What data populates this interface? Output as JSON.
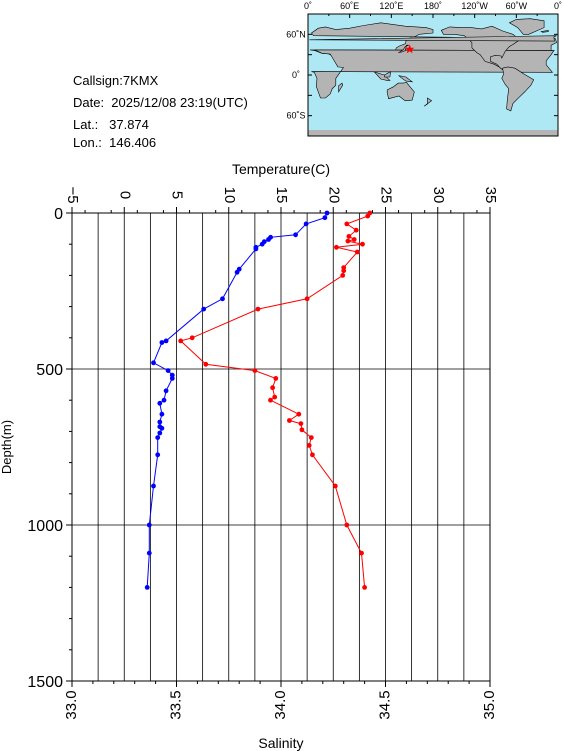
{
  "info": {
    "callsign": "Callsign:7KMX",
    "date": "Date:  2025/12/08 23:19(UTC)",
    "lat": "Lat.:   37.874",
    "lon": "Lon.:  146.406"
  },
  "map": {
    "lon_labels": [
      "0˚",
      "60˚E",
      "120˚E",
      "180˚",
      "120˚W",
      "60˚W",
      "0˚"
    ],
    "lat_labels": [
      "60˚N",
      "0˚",
      "60˚S"
    ],
    "station_lon": 146.406,
    "station_lat": 37.874,
    "ocean_color": "#aee8f5",
    "land_color": "#b4b4b4",
    "marker_color": "#ff0000"
  },
  "chart_data": {
    "type": "scatter",
    "title": "",
    "ylabel": "Depth(m)",
    "ylim": [
      0,
      1500
    ],
    "y_inverted": true,
    "y_ticks": [
      "0",
      "500",
      "1000",
      "1500"
    ],
    "top_axis": {
      "label": "Temperature(C)",
      "range": [
        -5,
        35
      ],
      "ticks": [
        "−5",
        "0",
        "5",
        "10",
        "15",
        "20",
        "25",
        "30",
        "35"
      ]
    },
    "bottom_axis": {
      "label": "Salinity",
      "range": [
        33.0,
        35.0
      ],
      "ticks": [
        "33.0",
        "33.5",
        "34.0",
        "34.5",
        "35.0"
      ]
    },
    "grid": true,
    "series": [
      {
        "axis": "temperature",
        "color": "#ff0000",
        "points": [
          [
            23.5,
            0
          ],
          [
            23.3,
            10
          ],
          [
            21.3,
            35
          ],
          [
            22.2,
            55
          ],
          [
            21.5,
            75
          ],
          [
            22.0,
            85
          ],
          [
            21.4,
            90
          ],
          [
            22.8,
            100
          ],
          [
            20.3,
            110
          ],
          [
            22.3,
            125
          ],
          [
            21.0,
            175
          ],
          [
            21.0,
            185
          ],
          [
            20.9,
            200
          ],
          [
            17.5,
            275
          ],
          [
            12.8,
            308
          ],
          [
            6.5,
            400
          ],
          [
            5.4,
            410
          ],
          [
            7.8,
            485
          ],
          [
            12.5,
            505
          ],
          [
            14.5,
            530
          ],
          [
            14.2,
            560
          ],
          [
            14.4,
            590
          ],
          [
            14.0,
            600
          ],
          [
            16.7,
            645
          ],
          [
            15.8,
            665
          ],
          [
            16.9,
            675
          ],
          [
            17.0,
            695
          ],
          [
            17.9,
            720
          ],
          [
            17.7,
            745
          ],
          [
            18.0,
            775
          ],
          [
            20.2,
            875
          ],
          [
            21.3,
            1000
          ],
          [
            22.7,
            1090
          ],
          [
            23.0,
            1200
          ]
        ]
      },
      {
        "axis": "salinity",
        "color": "#0000ff",
        "points": [
          [
            34.22,
            0
          ],
          [
            34.21,
            15
          ],
          [
            34.12,
            35
          ],
          [
            34.07,
            70
          ],
          [
            33.95,
            78
          ],
          [
            33.94,
            85
          ],
          [
            33.92,
            92
          ],
          [
            33.91,
            100
          ],
          [
            33.88,
            110
          ],
          [
            33.88,
            115
          ],
          [
            33.8,
            180
          ],
          [
            33.79,
            190
          ],
          [
            33.72,
            275
          ],
          [
            33.63,
            308
          ],
          [
            33.45,
            410
          ],
          [
            33.43,
            415
          ],
          [
            33.39,
            480
          ],
          [
            33.46,
            505
          ],
          [
            33.48,
            520
          ],
          [
            33.48,
            530
          ],
          [
            33.45,
            570
          ],
          [
            33.44,
            600
          ],
          [
            33.42,
            610
          ],
          [
            33.43,
            645
          ],
          [
            33.42,
            670
          ],
          [
            33.42,
            685
          ],
          [
            33.43,
            690
          ],
          [
            33.42,
            705
          ],
          [
            33.41,
            720
          ],
          [
            33.41,
            775
          ],
          [
            33.39,
            875
          ],
          [
            33.37,
            1000
          ],
          [
            33.37,
            1090
          ],
          [
            33.36,
            1200
          ]
        ]
      }
    ]
  }
}
